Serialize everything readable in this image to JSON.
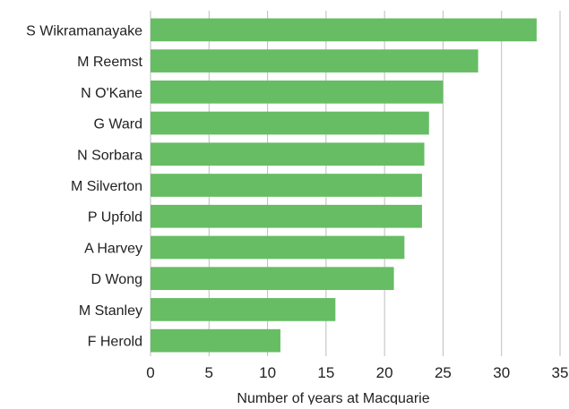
{
  "chart_data": {
    "type": "bar",
    "orientation": "horizontal",
    "title": "",
    "xlabel": "Number of years at Macquarie",
    "ylabel": "",
    "categories": [
      "S Wikramanayake",
      "M Reemst",
      "N O'Kane",
      "G Ward",
      "N Sorbara",
      "M Silverton",
      "P Upfold",
      "A Harvey",
      "D Wong",
      "M Stanley",
      "F Herold"
    ],
    "values": [
      33,
      28,
      25,
      23.8,
      23.4,
      23.2,
      23.2,
      21.7,
      20.8,
      15.8,
      11.1
    ],
    "xlim": [
      0,
      35
    ],
    "xticks": [
      0,
      5,
      10,
      15,
      20,
      25,
      30,
      35
    ],
    "grid": "vertical",
    "legend": "none",
    "bar_color": "#66bd63",
    "grid_color": "#bdbdbd"
  }
}
